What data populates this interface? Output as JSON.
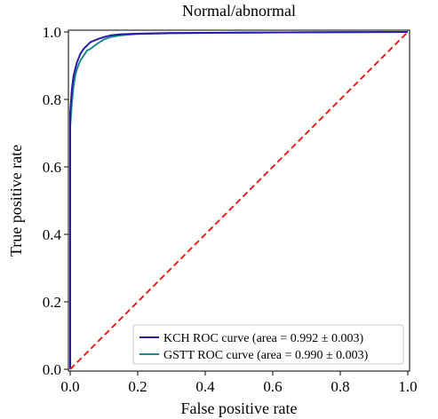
{
  "chart_data": {
    "type": "line",
    "title": "Normal/abnormal",
    "xlabel": "False positive rate",
    "ylabel": "True positive rate",
    "xlim": [
      0,
      1
    ],
    "ylim": [
      0,
      1
    ],
    "x_ticks": [
      0.0,
      0.2,
      0.4,
      0.6,
      0.8,
      1.0
    ],
    "x_tick_labels": [
      "0.0",
      "0.2",
      "0.4",
      "0.6",
      "0.8",
      "1.0"
    ],
    "y_ticks": [
      0.0,
      0.2,
      0.4,
      0.6,
      0.8,
      1.0
    ],
    "y_tick_labels": [
      "0.0",
      "0.2",
      "0.4",
      "0.6",
      "0.8",
      "1.0"
    ],
    "grid": false,
    "legend_position": "bottom-right",
    "series": [
      {
        "name": "KCH ROC curve (area = 0.992 ± 0.003)",
        "color": "#2b1aa6",
        "x": [
          0,
          0.0,
          0.005,
          0.01,
          0.015,
          0.02,
          0.03,
          0.04,
          0.05,
          0.06,
          0.08,
          0.1,
          0.12,
          0.15,
          0.2,
          0.3,
          0.5,
          0.7,
          1.0
        ],
        "y": [
          0,
          0.76,
          0.83,
          0.87,
          0.89,
          0.91,
          0.935,
          0.95,
          0.96,
          0.97,
          0.978,
          0.985,
          0.99,
          0.993,
          0.995,
          0.997,
          0.998,
          0.999,
          1.0
        ]
      },
      {
        "name": "GSTT ROC curve (area = 0.990 ± 0.003)",
        "color": "#1a8a8a",
        "x": [
          0,
          0.0,
          0.005,
          0.01,
          0.015,
          0.02,
          0.03,
          0.04,
          0.05,
          0.06,
          0.08,
          0.1,
          0.12,
          0.15,
          0.2,
          0.3,
          0.5,
          0.7,
          1.0
        ],
        "y": [
          0,
          0.72,
          0.79,
          0.84,
          0.87,
          0.89,
          0.915,
          0.93,
          0.945,
          0.95,
          0.965,
          0.978,
          0.985,
          0.99,
          0.994,
          0.996,
          0.998,
          0.999,
          1.0
        ]
      }
    ],
    "reference_line": {
      "x": [
        0,
        1
      ],
      "y": [
        0,
        1
      ],
      "color": "#e8211f",
      "style": "dashed"
    }
  }
}
